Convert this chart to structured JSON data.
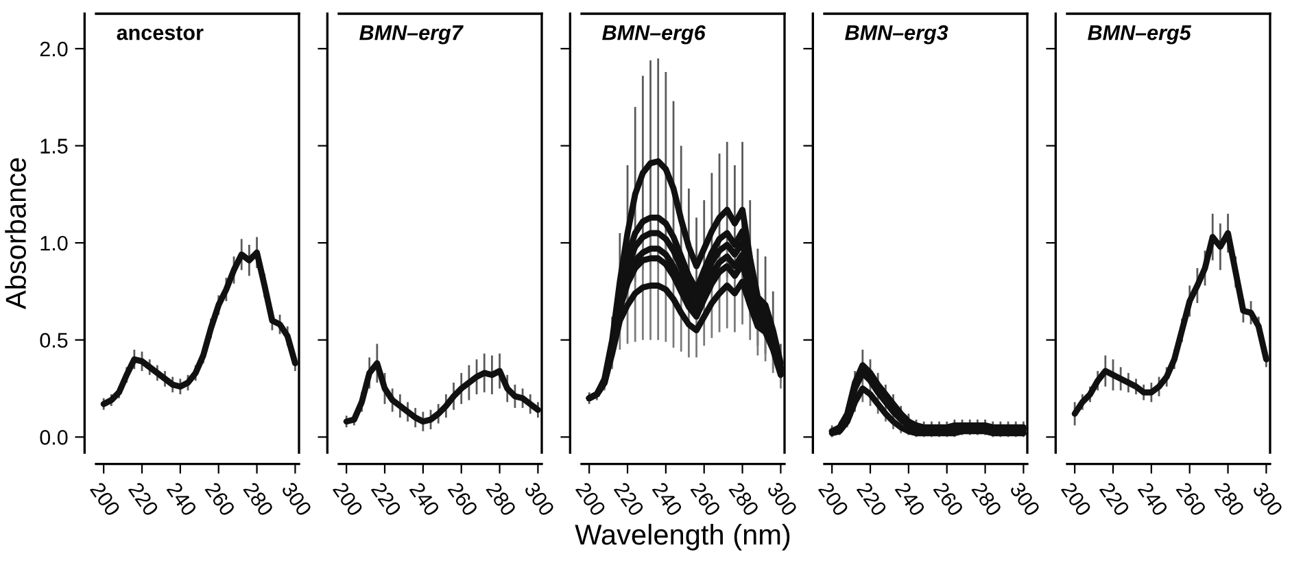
{
  "chart_data": [
    {
      "type": "line",
      "title": "ancestor",
      "ylabel": "Absorbance",
      "x": [
        200,
        204,
        208,
        212,
        216,
        220,
        224,
        228,
        232,
        236,
        240,
        244,
        248,
        252,
        256,
        260,
        264,
        268,
        272,
        276,
        280,
        284,
        288,
        292,
        296,
        300
      ],
      "xlim": [
        196,
        302
      ],
      "xticks": [
        200,
        220,
        240,
        260,
        280,
        300
      ],
      "ylim": [
        -0.08,
        2.18
      ],
      "yticks": [
        {
          "value": 0,
          "label": "0.0"
        },
        0.5,
        {
          "value": 1,
          "label": "1.0"
        },
        1.5,
        {
          "value": 2,
          "label": "2.0"
        }
      ],
      "grid": false,
      "series": [
        {
          "color": "#111111",
          "values": [
            0.17,
            0.19,
            0.23,
            0.32,
            0.4,
            0.39,
            0.36,
            0.33,
            0.3,
            0.27,
            0.26,
            0.28,
            0.33,
            0.42,
            0.56,
            0.68,
            0.76,
            0.86,
            0.94,
            0.91,
            0.95,
            0.78,
            0.6,
            0.58,
            0.52,
            0.38
          ],
          "errors": [
            0.03,
            0.03,
            0.03,
            0.04,
            0.05,
            0.05,
            0.04,
            0.04,
            0.04,
            0.04,
            0.04,
            0.04,
            0.04,
            0.04,
            0.05,
            0.05,
            0.06,
            0.07,
            0.08,
            0.08,
            0.08,
            0.06,
            0.05,
            0.05,
            0.05,
            0.04
          ]
        }
      ]
    },
    {
      "type": "line",
      "title": "BMN–erg7",
      "x": [
        200,
        204,
        208,
        212,
        216,
        220,
        224,
        228,
        232,
        236,
        240,
        244,
        248,
        252,
        256,
        260,
        264,
        268,
        272,
        276,
        280,
        284,
        288,
        292,
        296,
        300
      ],
      "xlim": [
        196,
        302
      ],
      "xticks": [
        200,
        220,
        240,
        260,
        280,
        300
      ],
      "ylim": [
        -0.08,
        2.18
      ],
      "yticks": [
        0.0,
        0.5,
        1.0,
        1.5,
        2.0
      ],
      "tick_labels": "x",
      "grid": false,
      "series": [
        {
          "color": "#111111",
          "values": [
            0.08,
            0.09,
            0.18,
            0.33,
            0.38,
            0.25,
            0.19,
            0.16,
            0.13,
            0.1,
            0.08,
            0.09,
            0.12,
            0.16,
            0.21,
            0.25,
            0.28,
            0.31,
            0.33,
            0.32,
            0.34,
            0.25,
            0.21,
            0.2,
            0.17,
            0.14
          ],
          "errors": [
            0.03,
            0.03,
            0.05,
            0.08,
            0.1,
            0.08,
            0.06,
            0.06,
            0.05,
            0.05,
            0.05,
            0.05,
            0.05,
            0.06,
            0.07,
            0.08,
            0.09,
            0.09,
            0.1,
            0.1,
            0.09,
            0.07,
            0.06,
            0.05,
            0.05,
            0.04
          ]
        }
      ]
    },
    {
      "type": "line",
      "title": "BMN–erg6",
      "xlabel": "Wavelength (nm)",
      "x": [
        200,
        204,
        208,
        212,
        216,
        220,
        224,
        228,
        232,
        236,
        240,
        244,
        248,
        252,
        256,
        260,
        264,
        268,
        272,
        276,
        280,
        284,
        288,
        292,
        296,
        300
      ],
      "xlim": [
        196,
        302
      ],
      "xticks": [
        200,
        220,
        240,
        260,
        280,
        300
      ],
      "ylim": [
        -0.08,
        2.18
      ],
      "yticks": [
        0.0,
        0.5,
        1.0,
        1.5,
        2.0
      ],
      "tick_labels": "x",
      "grid": false,
      "series": [
        {
          "color": "#111111",
          "values": [
            0.2,
            0.22,
            0.3,
            0.5,
            0.8,
            1.05,
            1.25,
            1.36,
            1.41,
            1.42,
            1.38,
            1.28,
            1.12,
            0.98,
            0.88,
            0.97,
            1.06,
            1.13,
            1.17,
            1.1,
            1.17,
            0.92,
            0.72,
            0.68,
            0.55,
            0.38
          ],
          "errors": [
            0.03,
            0.03,
            0.05,
            0.12,
            0.25,
            0.35,
            0.45,
            0.5,
            0.53,
            0.53,
            0.5,
            0.45,
            0.38,
            0.3,
            0.25,
            0.25,
            0.3,
            0.33,
            0.35,
            0.3,
            0.35,
            0.3,
            0.25,
            0.25,
            0.2,
            0.1
          ]
        },
        {
          "color": "#111111",
          "values": [
            0.2,
            0.22,
            0.29,
            0.48,
            0.74,
            0.93,
            1.05,
            1.11,
            1.13,
            1.13,
            1.1,
            1.03,
            0.93,
            0.83,
            0.76,
            0.86,
            0.95,
            1.02,
            1.05,
            0.99,
            1.06,
            0.85,
            0.68,
            0.64,
            0.52,
            0.36
          ]
        },
        {
          "color": "#111111",
          "values": [
            0.2,
            0.22,
            0.29,
            0.47,
            0.71,
            0.88,
            0.98,
            1.03,
            1.05,
            1.05,
            1.02,
            0.96,
            0.87,
            0.78,
            0.71,
            0.81,
            0.9,
            0.96,
            0.99,
            0.94,
            1.0,
            0.82,
            0.66,
            0.62,
            0.5,
            0.35
          ]
        },
        {
          "color": "#111111",
          "values": [
            0.2,
            0.22,
            0.28,
            0.46,
            0.68,
            0.82,
            0.91,
            0.95,
            0.97,
            0.97,
            0.94,
            0.88,
            0.8,
            0.72,
            0.66,
            0.75,
            0.84,
            0.9,
            0.93,
            0.88,
            0.94,
            0.78,
            0.63,
            0.59,
            0.48,
            0.34
          ]
        },
        {
          "color": "#111111",
          "values": [
            0.2,
            0.22,
            0.28,
            0.45,
            0.66,
            0.79,
            0.87,
            0.91,
            0.92,
            0.92,
            0.89,
            0.83,
            0.75,
            0.67,
            0.62,
            0.71,
            0.79,
            0.85,
            0.88,
            0.83,
            0.89,
            0.75,
            0.61,
            0.57,
            0.47,
            0.33
          ]
        },
        {
          "color": "#111111",
          "values": [
            0.2,
            0.22,
            0.28,
            0.43,
            0.6,
            0.68,
            0.74,
            0.77,
            0.78,
            0.78,
            0.76,
            0.71,
            0.64,
            0.58,
            0.55,
            0.62,
            0.69,
            0.74,
            0.78,
            0.74,
            0.8,
            0.68,
            0.57,
            0.54,
            0.45,
            0.32
          ],
          "errors": [
            null,
            null,
            0.04,
            0.08,
            0.15,
            0.2,
            0.25,
            0.27,
            0.28,
            0.28,
            0.27,
            0.25,
            0.2,
            0.17,
            0.14,
            0.15,
            0.18,
            0.2,
            0.22,
            0.2,
            0.22,
            0.18,
            0.15,
            0.15,
            0.12,
            0.07
          ]
        }
      ]
    },
    {
      "type": "line",
      "title": "BMN–erg3",
      "x": [
        200,
        204,
        208,
        212,
        216,
        220,
        224,
        228,
        232,
        236,
        240,
        244,
        248,
        252,
        256,
        260,
        264,
        268,
        272,
        276,
        280,
        284,
        288,
        292,
        296,
        300
      ],
      "xlim": [
        196,
        302
      ],
      "xticks": [
        200,
        220,
        240,
        260,
        280,
        300
      ],
      "ylim": [
        -0.08,
        2.18
      ],
      "yticks": [
        0.0,
        0.5,
        1.0,
        1.5,
        2.0
      ],
      "tick_labels": "x",
      "grid": false,
      "series": [
        {
          "color": "#111111",
          "values": [
            0.03,
            0.05,
            0.12,
            0.28,
            0.37,
            0.33,
            0.27,
            0.22,
            0.17,
            0.12,
            0.08,
            0.06,
            0.05,
            0.05,
            0.05,
            0.05,
            0.06,
            0.06,
            0.06,
            0.06,
            0.06,
            0.05,
            0.05,
            0.05,
            0.05,
            0.05
          ],
          "errors": [
            0.03,
            0.03,
            0.04,
            0.06,
            0.08,
            0.07,
            0.06,
            0.05,
            0.05,
            0.04,
            0.04,
            0.03,
            0.03,
            0.03,
            0.03,
            0.03,
            0.03,
            0.03,
            0.03,
            0.03,
            0.03,
            0.03,
            0.03,
            0.03,
            0.03,
            0.03
          ]
        },
        {
          "color": "#111111",
          "values": [
            0.03,
            0.04,
            0.11,
            0.25,
            0.33,
            0.29,
            0.23,
            0.18,
            0.13,
            0.09,
            0.06,
            0.04,
            0.03,
            0.03,
            0.03,
            0.04,
            0.05,
            0.05,
            0.05,
            0.05,
            0.05,
            0.04,
            0.04,
            0.04,
            0.04,
            0.04
          ]
        },
        {
          "color": "#111111",
          "values": [
            0.02,
            0.03,
            0.08,
            0.18,
            0.25,
            0.22,
            0.17,
            0.12,
            0.08,
            0.05,
            0.03,
            0.02,
            0.02,
            0.02,
            0.02,
            0.02,
            0.02,
            0.03,
            0.03,
            0.03,
            0.03,
            0.02,
            0.02,
            0.02,
            0.02,
            0.02
          ],
          "errors": [
            0.02,
            0.02,
            0.03,
            0.05,
            0.07,
            0.06,
            0.05,
            0.04,
            0.04,
            0.03,
            0.02,
            0.02,
            0.02,
            0.02,
            0.02,
            0.02,
            0.02,
            0.02,
            0.02,
            0.02,
            0.02,
            0.02,
            0.02,
            0.02,
            0.02,
            0.02
          ]
        }
      ]
    },
    {
      "type": "line",
      "title": "BMN–erg5",
      "x": [
        200,
        204,
        208,
        212,
        216,
        220,
        224,
        228,
        232,
        236,
        240,
        244,
        248,
        252,
        256,
        260,
        264,
        268,
        272,
        276,
        280,
        284,
        288,
        292,
        296,
        300
      ],
      "xlim": [
        196,
        302
      ],
      "xticks": [
        200,
        220,
        240,
        260,
        280,
        300
      ],
      "ylim": [
        -0.08,
        2.18
      ],
      "yticks": [
        0.0,
        0.5,
        1.0,
        1.5,
        2.0
      ],
      "tick_labels": "x",
      "grid": false,
      "series": [
        {
          "color": "#111111",
          "values": [
            0.12,
            0.18,
            0.22,
            0.29,
            0.34,
            0.32,
            0.3,
            0.28,
            0.26,
            0.23,
            0.23,
            0.26,
            0.31,
            0.4,
            0.55,
            0.7,
            0.78,
            0.87,
            1.03,
            0.98,
            1.05,
            0.85,
            0.65,
            0.64,
            0.57,
            0.4
          ],
          "errors": [
            0.06,
            0.04,
            0.04,
            0.05,
            0.08,
            0.08,
            0.06,
            0.05,
            0.04,
            0.04,
            0.05,
            0.05,
            0.05,
            0.05,
            0.06,
            0.08,
            0.09,
            0.09,
            0.12,
            0.12,
            0.1,
            0.08,
            0.06,
            0.06,
            0.05,
            0.04
          ]
        }
      ]
    }
  ]
}
